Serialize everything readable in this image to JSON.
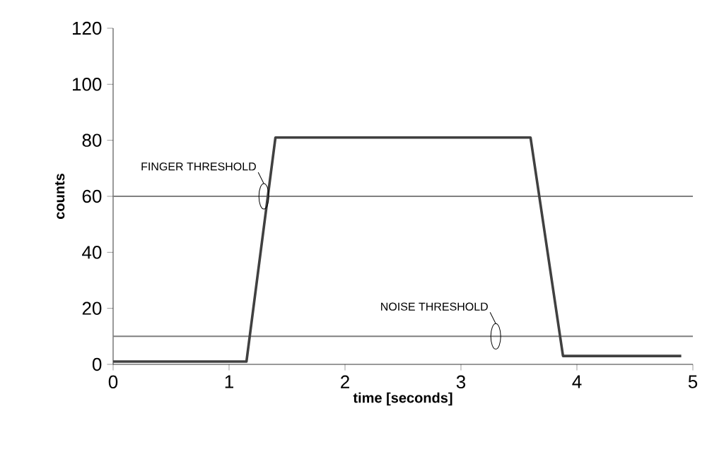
{
  "chart_data": {
    "type": "line",
    "xlabel": "time [seconds]",
    "ylabel": "counts",
    "x": [
      0,
      1.15,
      1.4,
      3.6,
      3.88,
      4.9
    ],
    "values": [
      1,
      1,
      81,
      81,
      3,
      3
    ],
    "color": "#404040",
    "xlim": [
      0,
      5
    ],
    "xticks": [
      0,
      1,
      2,
      3,
      4,
      5
    ],
    "ylim": [
      0,
      120
    ],
    "yticks": [
      0,
      20,
      40,
      60,
      80,
      100,
      120
    ],
    "grid": false,
    "marker": "none",
    "line_style": "solid",
    "ref_lines": [
      {
        "axis": "y",
        "value": 60,
        "color": "#808080"
      },
      {
        "axis": "y",
        "value": 10,
        "color": "#808080"
      }
    ],
    "annotations": [
      {
        "text": "FINGER THRESHOLD",
        "x": 1.3,
        "y": 60
      },
      {
        "text": "NOISE THRESHOLD",
        "x": 3.3,
        "y": 10
      }
    ]
  }
}
